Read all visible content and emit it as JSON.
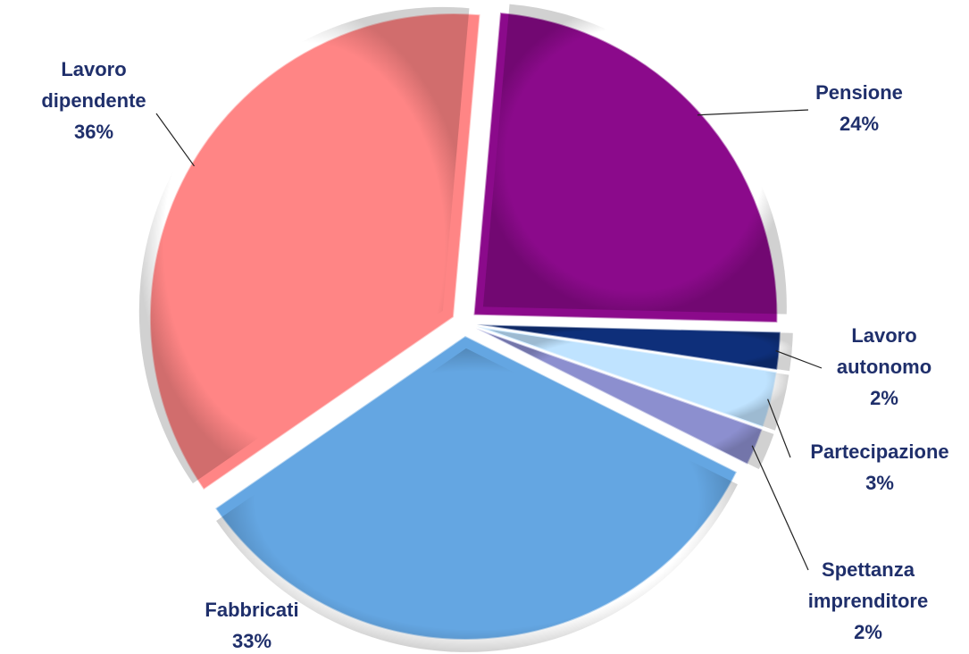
{
  "chart_data": {
    "type": "pie",
    "categories": [
      "Pensione",
      "Lavoro autonomo",
      "Partecipazione",
      "Spettanza imprenditore",
      "Fabbricati",
      "Lavoro dipendente"
    ],
    "values": [
      24,
      2,
      3,
      2,
      33,
      36
    ],
    "value_labels": [
      "24%",
      "2%",
      "3%",
      "2%",
      "33%",
      "36%"
    ],
    "colors": [
      "#8b0a8b",
      "#0e2f7a",
      "#bfe3ff",
      "#8c8fcf",
      "#64a6e2",
      "#ff8585"
    ]
  }
}
